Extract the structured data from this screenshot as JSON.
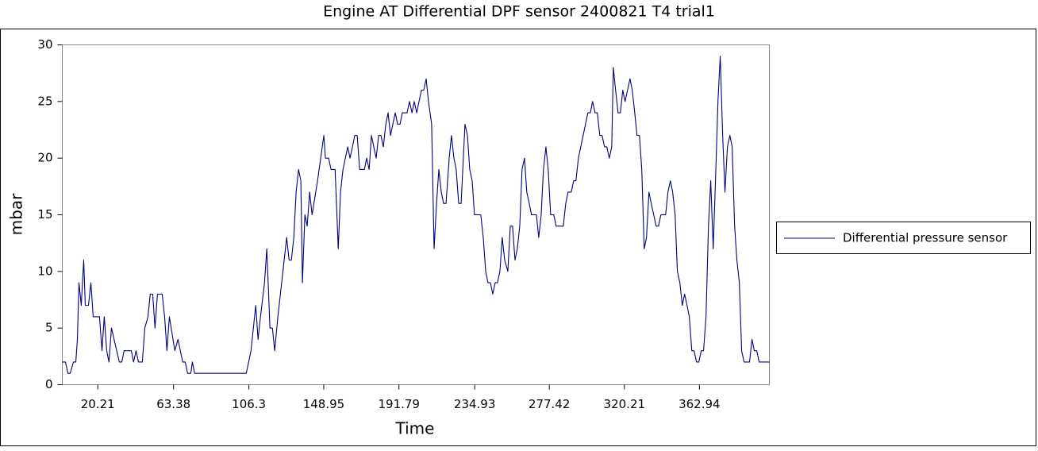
{
  "chart_data": {
    "type": "line",
    "title": "Engine AT   Differential DPF sensor 2400821 T4 trial1",
    "x_label": "Time",
    "y_label": "mbar",
    "xlim": [
      0,
      402.8
    ],
    "ylim": [
      0,
      30
    ],
    "xticks": [
      20.21,
      63.38,
      106.3,
      148.95,
      191.79,
      234.93,
      277.42,
      320.21,
      362.94
    ],
    "yticks": [
      0,
      5,
      10,
      15,
      20,
      25,
      30
    ],
    "grid": false,
    "legend": "right",
    "x": [
      0,
      1.8,
      3.2,
      4.5,
      6.3,
      7.7,
      8.6,
      9.5,
      10.8,
      12.2,
      13.1,
      14.9,
      16.3,
      17.6,
      21.2,
      22.6,
      23.9,
      25.3,
      26.6,
      28.0,
      32.5,
      33.9,
      35.2,
      39.3,
      40.6,
      42.0,
      43.4,
      45.6,
      47.0,
      48.8,
      50.1,
      51.5,
      52.8,
      54.2,
      56.9,
      58.3,
      59.6,
      61.0,
      64.1,
      65.9,
      68.6,
      70.0,
      71.4,
      73.2,
      74.1,
      75.4,
      104.8,
      107.5,
      110.2,
      111.5,
      112.9,
      115.2,
      116.5,
      118.3,
      119.7,
      121.0,
      122.8,
      126.4,
      127.8,
      129.2,
      130.5,
      131.9,
      133.2,
      134.6,
      135.9,
      136.8,
      138.2,
      139.5,
      140.9,
      142.3,
      145.4,
      147.2,
      149.0,
      149.9,
      151.7,
      153.1,
      155.4,
      157.2,
      158.5,
      159.9,
      162.6,
      163.9,
      165.3,
      166.6,
      168.0,
      169.4,
      172.1,
      173.4,
      174.8,
      176.1,
      178.8,
      180.2,
      181.5,
      182.9,
      184.3,
      185.6,
      187.0,
      188.3,
      189.7,
      191.0,
      192.4,
      193.7,
      196.4,
      197.8,
      199.2,
      200.5,
      201.9,
      203.2,
      204.6,
      205.9,
      207.3,
      208.6,
      210.4,
      211.8,
      213.2,
      214.5,
      215.9,
      217.2,
      218.6,
      220.4,
      221.7,
      223.1,
      224.4,
      225.8,
      227.2,
      229.4,
      230.8,
      232.1,
      233.5,
      234.8,
      238.4,
      239.8,
      241.2,
      242.5,
      243.9,
      245.2,
      246.6,
      247.9,
      249.3,
      250.6,
      252.0,
      253.8,
      255.2,
      256.5,
      257.9,
      259.2,
      260.6,
      261.9,
      263.3,
      264.6,
      266.0,
      267.3,
      270.1,
      271.4,
      272.8,
      274.1,
      275.5,
      276.8,
      278.2,
      280.0,
      281.3,
      285.4,
      286.8,
      288.1,
      289.9,
      291.3,
      292.6,
      294.0,
      296.7,
      299.4,
      300.8,
      302.1,
      303.5,
      304.8,
      306.2,
      307.5,
      308.9,
      310.2,
      311.6,
      313.0,
      313.9,
      315.2,
      316.6,
      317.9,
      319.3,
      320.6,
      322.0,
      323.4,
      324.7,
      326.1,
      327.4,
      328.8,
      330.1,
      331.5,
      332.8,
      334.2,
      335.5,
      336.9,
      338.3,
      339.6,
      341.0,
      343.7,
      345.0,
      346.4,
      347.7,
      349.1,
      350.4,
      351.8,
      353.2,
      354.5,
      355.9,
      357.2,
      358.6,
      359.9,
      361.3,
      362.6,
      364.0,
      365.3,
      366.7,
      368.1,
      369.4,
      370.8,
      372.1,
      373.5,
      374.8,
      376.2,
      377.5,
      378.9,
      380.3,
      381.6,
      383.0,
      384.3,
      385.7,
      387.0,
      388.4,
      391.5,
      392.9,
      394.2,
      395.6,
      397.0,
      402.8
    ],
    "series": [
      {
        "name": "Differential pressure sensor",
        "color": "#000080",
        "values": [
          2,
          2,
          1,
          1,
          2,
          2,
          4,
          9,
          7,
          11,
          7,
          7,
          9,
          6,
          6,
          3,
          6,
          3,
          2,
          5,
          2,
          2,
          3,
          3,
          2,
          3,
          2,
          2,
          5,
          6,
          8,
          8,
          5,
          8,
          8,
          6,
          3,
          6,
          3,
          4,
          2,
          2,
          1,
          1,
          2,
          1,
          1,
          3,
          7,
          4,
          6,
          9,
          12,
          5,
          5,
          3,
          6,
          11,
          13,
          11,
          11,
          13,
          17,
          19,
          18,
          9,
          15,
          14,
          17,
          15,
          18,
          20,
          22,
          20,
          20,
          19,
          19,
          12,
          17,
          19,
          21,
          20,
          21,
          22,
          22,
          19,
          19,
          20,
          19,
          22,
          20,
          22,
          22,
          21,
          23,
          24,
          22,
          23,
          24,
          23,
          23,
          24,
          24,
          25,
          24,
          25,
          24,
          25,
          26,
          26,
          27,
          25,
          23,
          12,
          16,
          19,
          17,
          16,
          16,
          20,
          22,
          20,
          19,
          16,
          16,
          23,
          22,
          19,
          18,
          15,
          15,
          13,
          10,
          9,
          9,
          8,
          9,
          9,
          10,
          13,
          11,
          10,
          14,
          14,
          11,
          12,
          14,
          19,
          20,
          17,
          16,
          15,
          15,
          13,
          15,
          19,
          21,
          19,
          15,
          15,
          14,
          14,
          16,
          17,
          17,
          18,
          18,
          20,
          22,
          24,
          24,
          25,
          24,
          24,
          22,
          22,
          21,
          21,
          20,
          21,
          28,
          26,
          24,
          24,
          26,
          25,
          26,
          27,
          26,
          24,
          22,
          22,
          19,
          12,
          13,
          17,
          16,
          15,
          14,
          14,
          15,
          15,
          17,
          18,
          17,
          15,
          10,
          9,
          7,
          8,
          7,
          6,
          3,
          3,
          2,
          2,
          3,
          3,
          6,
          14,
          18,
          12,
          18,
          25,
          29,
          22,
          17,
          21,
          22,
          21,
          14,
          11,
          9,
          3,
          2,
          2,
          4,
          3,
          3,
          2,
          2
        ]
      }
    ]
  }
}
